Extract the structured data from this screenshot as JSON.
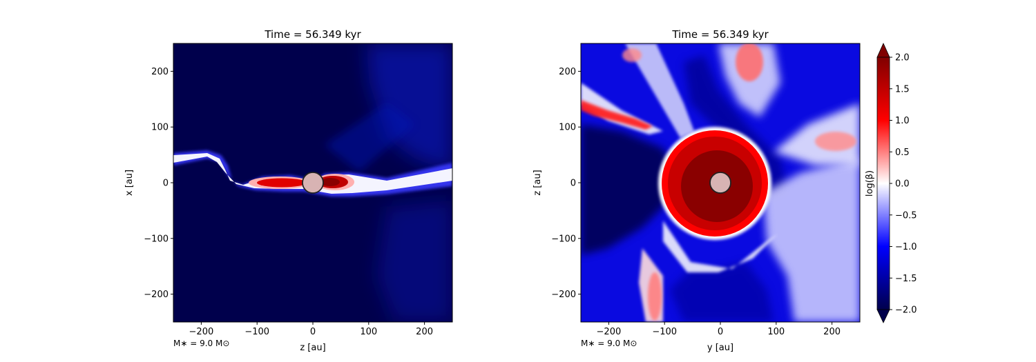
{
  "chart_data": [
    {
      "type": "heatmap",
      "title": "Time = 56.349 kyr",
      "xlabel": "z [au]",
      "ylabel": "x [au]",
      "xlim": [
        -250,
        250
      ],
      "ylim": [
        -250,
        250
      ],
      "xticks": [
        -200,
        -100,
        0,
        100,
        200
      ],
      "yticks": [
        -200,
        -100,
        0,
        100,
        200
      ],
      "xtick_labels": [
        "−200",
        "−100",
        "0",
        "100",
        "200"
      ],
      "ytick_labels": [
        "−200",
        "−100",
        "0",
        "100",
        "200"
      ],
      "annotation": "M∗ = 9.0 M⊙",
      "star": {
        "x": 0,
        "y": 0,
        "radius": 18
      },
      "description_of_field": "edge-on slice: thin plasma-beta > 1 disk along z axis near x = 0, elsewhere strongly magnetised (log beta ~ -2)"
    },
    {
      "type": "heatmap",
      "title": "Time = 56.349 kyr",
      "xlabel": "y [au]",
      "ylabel": "z [au]",
      "xlim": [
        -250,
        250
      ],
      "ylim": [
        -250,
        250
      ],
      "xticks": [
        -200,
        -100,
        0,
        100,
        200
      ],
      "yticks": [
        -200,
        -100,
        0,
        100,
        200
      ],
      "xtick_labels": [
        "−200",
        "−100",
        "0",
        "100",
        "200"
      ],
      "ytick_labels": [
        "−200",
        "−100",
        "0",
        "100",
        "200"
      ],
      "annotation": "M∗ = 9.0 M⊙",
      "star": {
        "x": 0,
        "y": 0,
        "radius": 18
      },
      "description_of_field": "face-on slice: high-beta bubble of radius ~75 au around the star, spiral streamers of mixed beta outward"
    }
  ],
  "colorbar": {
    "label": "log(β)",
    "min": -2.0,
    "max": 2.0,
    "extend": "both",
    "cmap": "seismic",
    "ticks": [
      -2.0,
      -1.5,
      -1.0,
      -0.5,
      0.0,
      0.5,
      1.0,
      1.5,
      2.0
    ],
    "tick_labels": [
      "−2.0",
      "−1.5",
      "−1.0",
      "−0.5",
      "0.0",
      "0.5",
      "1.0",
      "1.5",
      "2.0"
    ],
    "colors": {
      "low": "#00004c",
      "mid_low": "#0000ff",
      "center": "#ffffff",
      "mid_high": "#ff0000",
      "high": "#800000"
    }
  }
}
